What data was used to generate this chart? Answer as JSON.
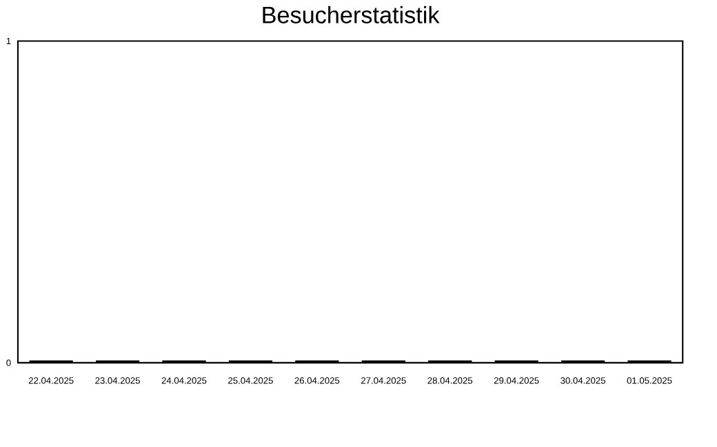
{
  "chart_data": {
    "type": "bar",
    "title": "Besucherstatistik",
    "categories": [
      "22.04.2025",
      "23.04.2025",
      "24.04.2025",
      "25.04.2025",
      "26.04.2025",
      "27.04.2025",
      "28.04.2025",
      "29.04.2025",
      "30.04.2025",
      "01.05.2025"
    ],
    "values": [
      0,
      0,
      0,
      0,
      0,
      0,
      0,
      0,
      0,
      0
    ],
    "color": "#000000",
    "ylim": [
      0,
      1
    ],
    "yticks": [
      0,
      1
    ],
    "grid": false
  }
}
